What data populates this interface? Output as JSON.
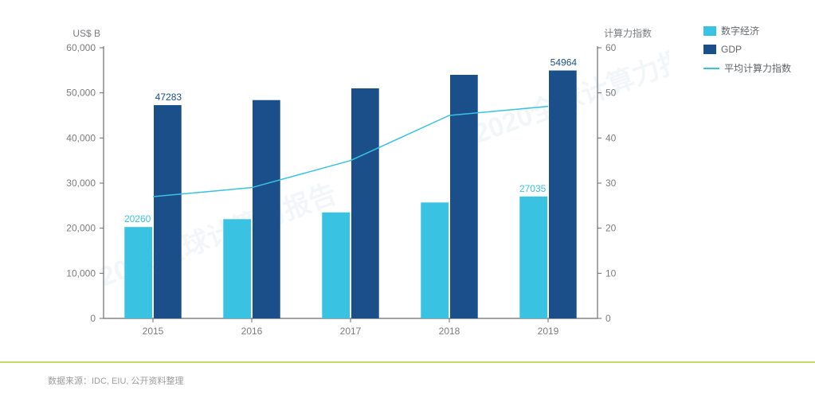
{
  "chart": {
    "type": "bar+line",
    "categories": [
      "2015",
      "2016",
      "2017",
      "2018",
      "2019"
    ],
    "y_left": {
      "label": "US$ B",
      "min": 0,
      "max": 60000,
      "ticks": [
        0,
        10000,
        20000,
        30000,
        40000,
        50000,
        60000
      ],
      "tick_labels": [
        "0",
        "10,000",
        "20,000",
        "30,000",
        "40,000",
        "50,000",
        "60,000"
      ],
      "fontsize": 12,
      "color": "#7a7d80"
    },
    "y_right": {
      "label": "计算力指数",
      "min": 0,
      "max": 60,
      "ticks": [
        0,
        10,
        20,
        30,
        40,
        50,
        60
      ],
      "fontsize": 12,
      "color": "#7a7d80"
    },
    "series": {
      "digital_economy": {
        "name": "数字经济",
        "type": "bar",
        "color": "#3ac2e2",
        "values": [
          20260,
          22000,
          23500,
          25700,
          27035
        ],
        "bar_width": 0.28
      },
      "gdp": {
        "name": "GDP",
        "type": "bar",
        "color": "#1a4f8a",
        "values": [
          47283,
          48400,
          51000,
          54000,
          54964
        ],
        "bar_width": 0.28
      },
      "compute_index": {
        "name": "平均计算力指数",
        "type": "line",
        "color": "#3ac2e2",
        "values": [
          27,
          29,
          35,
          45,
          47
        ],
        "line_width": 1.5
      }
    },
    "data_labels": [
      {
        "text": "47283",
        "series": "gdp",
        "index": 0,
        "color": "#1a4f8a"
      },
      {
        "text": "20260",
        "series": "digital_economy",
        "index": 0,
        "color": "#3ac2e2"
      },
      {
        "text": "54964",
        "series": "gdp",
        "index": 4,
        "color": "#1a4f8a"
      },
      {
        "text": "27035",
        "series": "digital_economy",
        "index": 4,
        "color": "#3ac2e2"
      }
    ],
    "background_color": "#ffffff",
    "axis_line_color": "#6b6e72",
    "grid_on": false
  },
  "legend_items": [
    {
      "key": "digital_economy",
      "label": "数字经济",
      "color": "#3ac2e2",
      "shape": "box"
    },
    {
      "key": "gdp",
      "label": "GDP",
      "color": "#1a4f8a",
      "shape": "box"
    },
    {
      "key": "compute_index",
      "label": "平均计算力指数",
      "color": "#3ac2e2",
      "shape": "line"
    }
  ],
  "footer": {
    "text": "数据来源：IDC, EIU, 公开资料整理",
    "border_color": "#c4da64"
  },
  "watermark": {
    "text": "2020全球计算力报告",
    "color": "#e8f0f4",
    "opacity": 0.55
  }
}
